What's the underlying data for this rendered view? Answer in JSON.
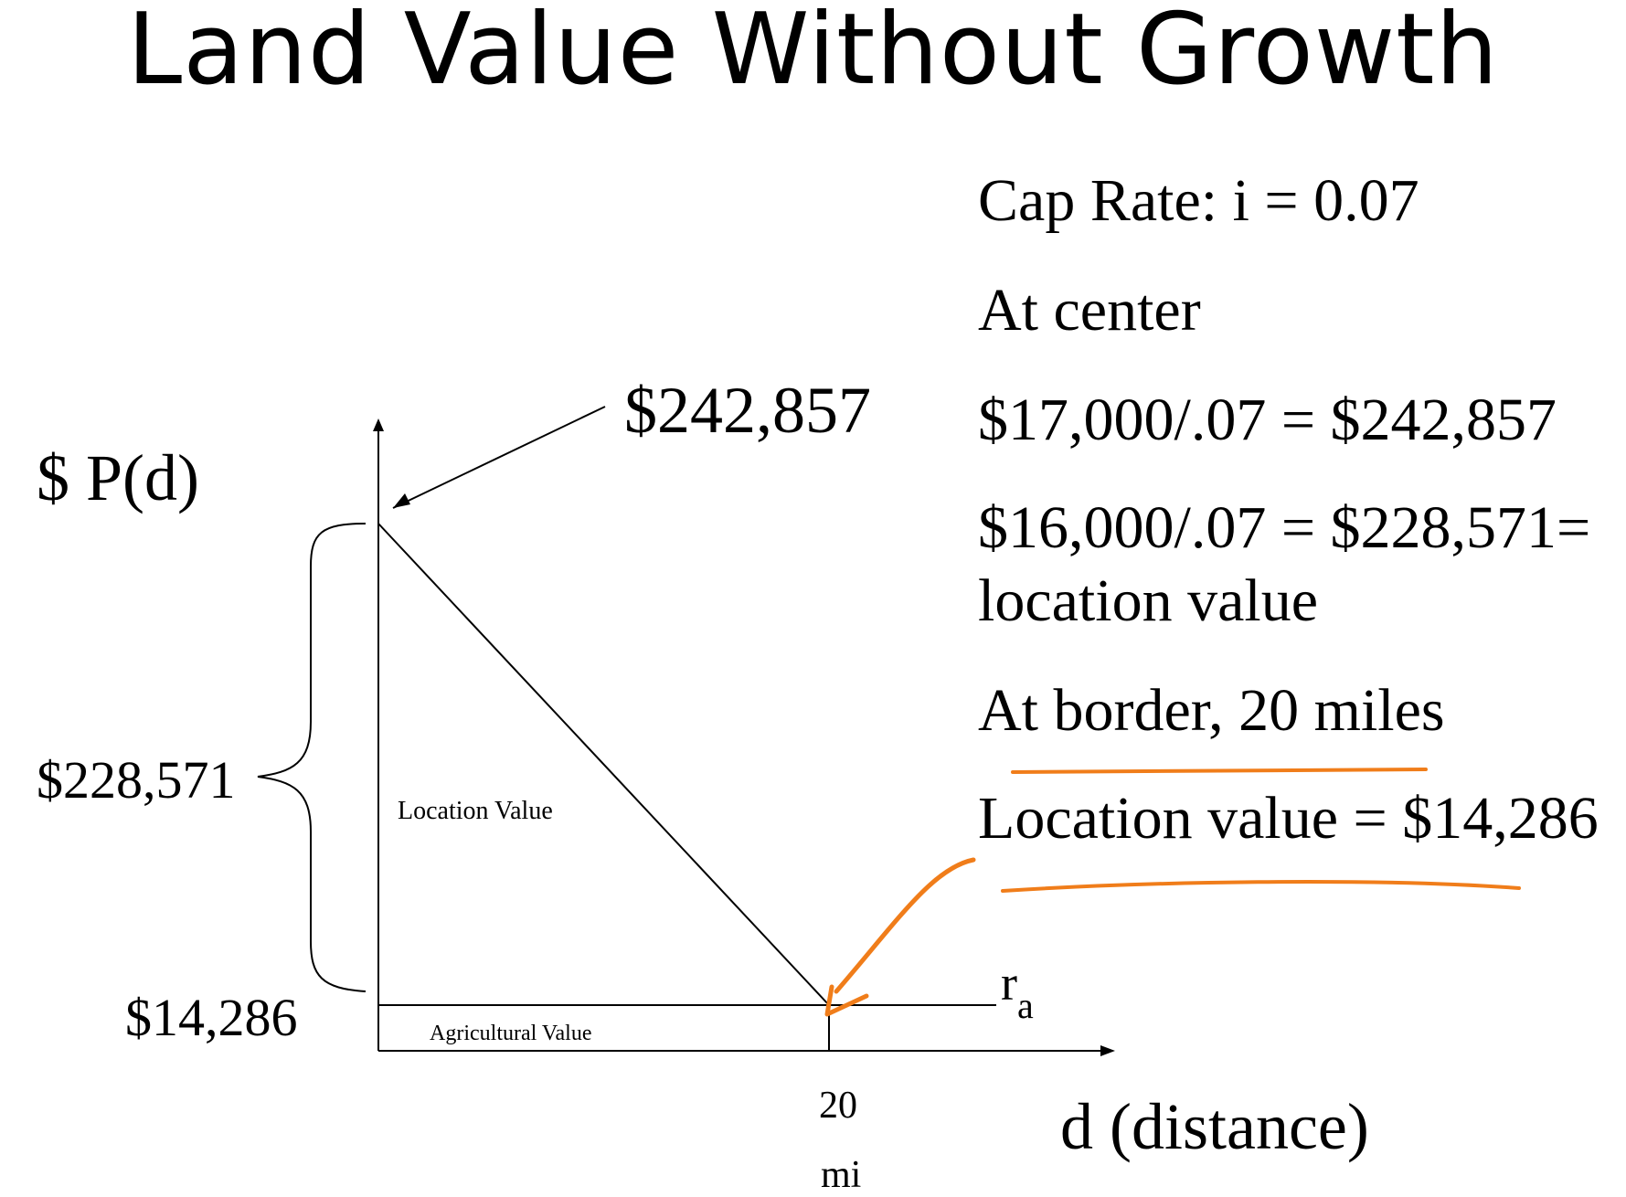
{
  "title": "Land Value Without Growth",
  "diagram": {
    "y_axis_label": "$ P(d)",
    "x_axis_label": "d (distance)",
    "peak_callout": "$242,857",
    "location_brace_label": "$228,571",
    "agri_value_label": "$14,286",
    "region_location": "Location Value",
    "region_agricultural": "Agricultural Value",
    "ra_main": "r",
    "ra_sub": "a",
    "x_tick_value": "20",
    "x_tick_unit": "mi"
  },
  "notes": {
    "cap_rate": "Cap Rate:  i = 0.07",
    "at_center": "At center",
    "calc_total": "$17,000/.07 = $242,857",
    "calc_location_1": "$16,000/.07 = $228,571=",
    "calc_location_2": "location value",
    "at_border": "At border, 20 miles",
    "border_location_value": "Location value = $14,286"
  },
  "colors": {
    "ink": "#000000",
    "annotation": "#f07d1a"
  }
}
